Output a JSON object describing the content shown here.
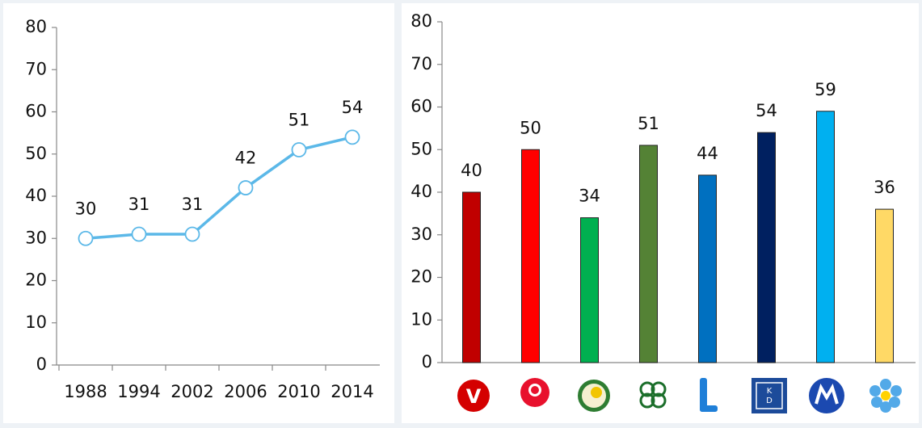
{
  "chart_data": [
    {
      "type": "line",
      "categories": [
        "1988",
        "1994",
        "2002",
        "2006",
        "2010",
        "2014"
      ],
      "values": [
        30,
        31,
        31,
        42,
        51,
        54
      ],
      "color": "#5bb8e8",
      "ylim": [
        0,
        80
      ],
      "yticks": [
        0,
        10,
        20,
        30,
        40,
        50,
        60,
        70,
        80
      ]
    },
    {
      "type": "bar",
      "categories": [
        null,
        null,
        null,
        null,
        null,
        null,
        null,
        null
      ],
      "values": [
        40,
        50,
        34,
        51,
        44,
        54,
        59,
        36
      ],
      "colors": [
        "#c00000",
        "#ff0000",
        "#00b050",
        "#548235",
        "#0070c0",
        "#002060",
        "#00b0f0",
        "#ffd966"
      ],
      "ylim": [
        0,
        80
      ],
      "yticks": [
        0,
        10,
        20,
        30,
        40,
        50,
        60,
        70,
        80
      ]
    }
  ]
}
